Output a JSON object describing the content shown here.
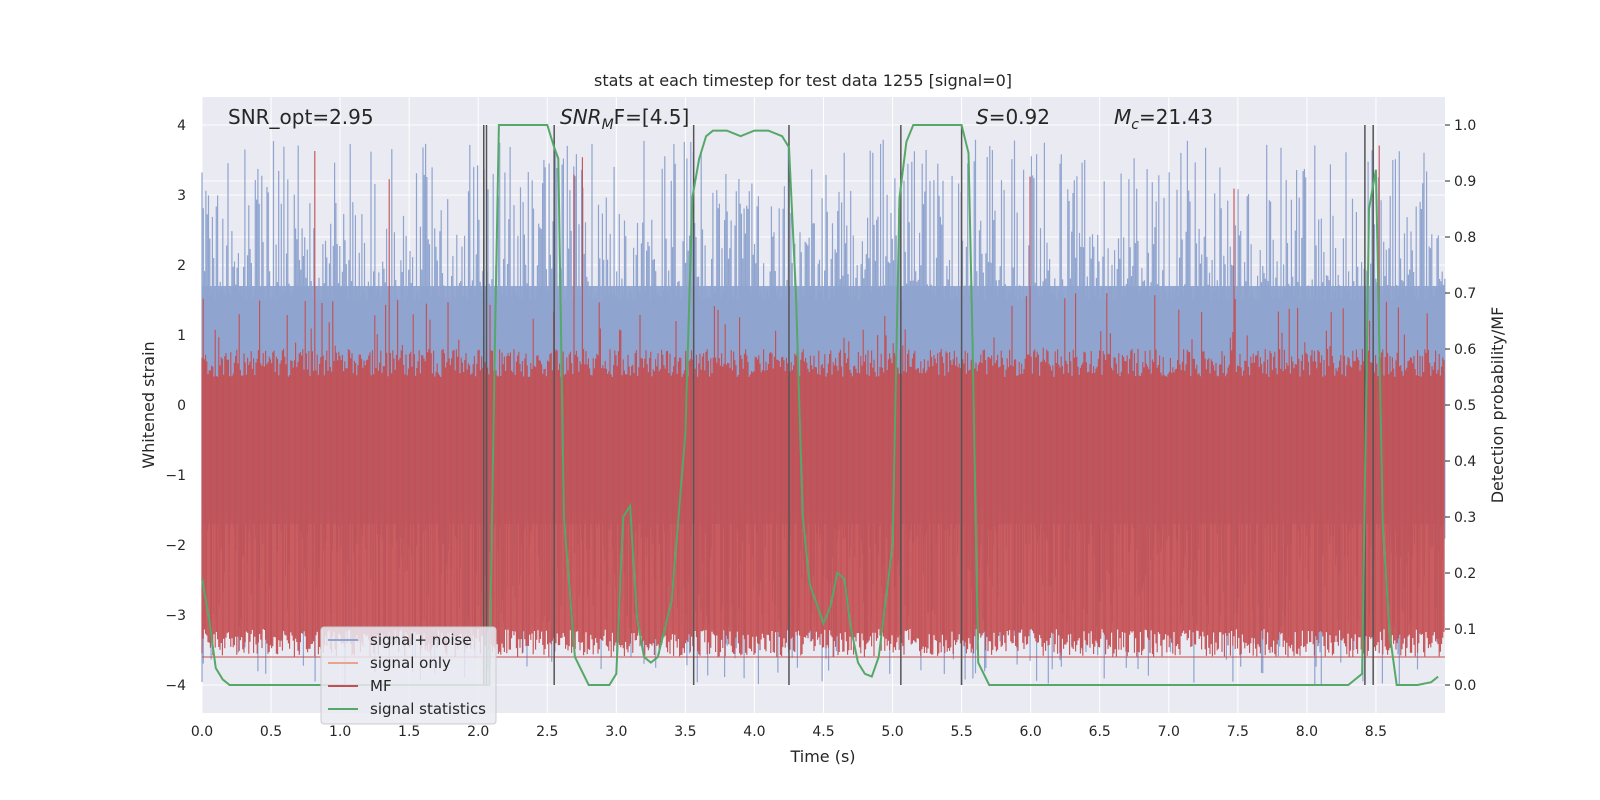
{
  "chart_data": {
    "type": "line",
    "title": "stats at each timestep for test data 1255 [signal=0]",
    "xlabel": "Time (s)",
    "ylabel": "Whitened strain",
    "y2label": "Detection probability/MF",
    "xlim": [
      0.0,
      9.0
    ],
    "ylim": [
      -4.4,
      4.4
    ],
    "y2lim": [
      -0.05,
      1.05
    ],
    "xticks": [
      "0.0",
      "0.5",
      "1.0",
      "1.5",
      "2.0",
      "2.5",
      "3.0",
      "3.5",
      "4.0",
      "4.5",
      "5.0",
      "5.5",
      "6.0",
      "6.5",
      "7.0",
      "7.5",
      "8.0",
      "8.5"
    ],
    "yticks": [
      "4",
      "3",
      "2",
      "1",
      "0",
      "−1",
      "−2",
      "−3",
      "−4"
    ],
    "y2ticks": [
      "1.0",
      "0.9",
      "0.8",
      "0.7",
      "0.6",
      "0.5",
      "0.4",
      "0.3",
      "0.2",
      "0.1",
      "0.0"
    ],
    "annotations": {
      "snr_opt": "SNR_opt=2.95",
      "snr_mf_sym": "SNR",
      "snr_mf_sub": "M",
      "snr_mf_rest": "F=[4.5]",
      "s_sym": "S",
      "s_rest": "=0.92",
      "mc_sym": "M",
      "mc_sub": "c",
      "mc_rest": "=21.43"
    },
    "legend": {
      "placement": "lower-left",
      "entries": [
        "signal+ noise",
        "signal only",
        "MF",
        "signal statistics"
      ]
    },
    "colors": {
      "signal_noise": "#8fa4cf",
      "signal_only": "#e8a58a",
      "mf": "#c44e52",
      "statistics": "#55a868",
      "vlines": "#555555",
      "background": "#eaeaf2"
    },
    "series": [
      {
        "name": "signal+ noise",
        "kind": "band",
        "x_range": [
          0.0,
          9.0
        ],
        "core_amplitude": 1.7,
        "spike_max": 3.8,
        "spike_min": -4.0
      },
      {
        "name": "signal only",
        "values": []
      },
      {
        "name": "MF",
        "kind": "band",
        "x_range": [
          0.0,
          9.0
        ],
        "base": 0.05,
        "typical_max": 0.6,
        "peak": 0.98
      },
      {
        "name": "signal statistics",
        "axis": "right",
        "x": [
          0.0,
          0.05,
          0.1,
          0.15,
          0.2,
          0.3,
          0.5,
          1.0,
          1.5,
          2.0,
          2.05,
          2.08,
          2.12,
          2.15,
          2.2,
          2.3,
          2.4,
          2.5,
          2.55,
          2.58,
          2.62,
          2.7,
          2.8,
          2.9,
          2.95,
          3.0,
          3.05,
          3.1,
          3.15,
          3.2,
          3.25,
          3.3,
          3.4,
          3.5,
          3.55,
          3.6,
          3.65,
          3.7,
          3.8,
          3.9,
          4.0,
          4.1,
          4.2,
          4.25,
          4.3,
          4.35,
          4.4,
          4.5,
          4.55,
          4.6,
          4.65,
          4.7,
          4.75,
          4.8,
          4.85,
          4.9,
          5.0,
          5.05,
          5.1,
          5.15,
          5.2,
          5.3,
          5.4,
          5.5,
          5.55,
          5.58,
          5.62,
          5.7,
          5.8,
          6.0,
          7.0,
          8.0,
          8.3,
          8.4,
          8.45,
          8.5,
          8.55,
          8.6,
          8.65,
          8.7,
          8.8,
          8.9,
          8.95
        ],
        "values": [
          0.19,
          0.12,
          0.03,
          0.01,
          0.0,
          0.0,
          0.0,
          0.0,
          0.0,
          0.0,
          0.0,
          0.0,
          0.6,
          1.0,
          1.0,
          1.0,
          1.0,
          1.0,
          0.96,
          0.94,
          0.3,
          0.05,
          0.0,
          0.0,
          0.0,
          0.02,
          0.3,
          0.32,
          0.12,
          0.05,
          0.04,
          0.05,
          0.15,
          0.45,
          0.87,
          0.94,
          0.98,
          0.99,
          0.99,
          0.98,
          0.99,
          0.99,
          0.98,
          0.96,
          0.7,
          0.3,
          0.18,
          0.11,
          0.14,
          0.2,
          0.19,
          0.1,
          0.04,
          0.02,
          0.015,
          0.05,
          0.25,
          0.87,
          0.97,
          1.0,
          1.0,
          1.0,
          1.0,
          1.0,
          0.95,
          0.6,
          0.04,
          0.0,
          0.0,
          0.0,
          0.0,
          0.0,
          0.0,
          0.02,
          0.85,
          0.92,
          0.28,
          0.09,
          0.0,
          0.0,
          0.0,
          0.005,
          0.015
        ]
      }
    ],
    "vlines": [
      2.04,
      2.06,
      2.55,
      3.56,
      4.25,
      5.06,
      5.5,
      8.42,
      8.48
    ]
  }
}
